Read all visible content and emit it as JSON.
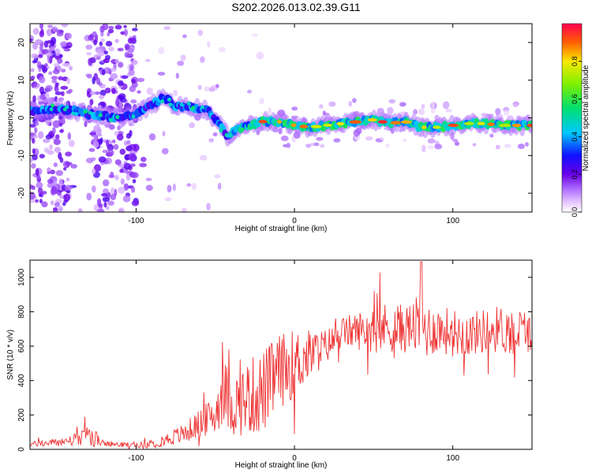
{
  "title": "S202.2026.013.02.39.G11",
  "chart_data": [
    {
      "type": "heatmap",
      "xlabel": "Height of straight line (km)",
      "ylabel": "Frequency (Hz)",
      "xlim": [
        -167,
        150
      ],
      "ylim": [
        -25,
        25
      ],
      "x_ticks": [
        -100,
        0,
        100
      ],
      "y_ticks": [
        -20,
        -10,
        0,
        10,
        20
      ],
      "ridge": {
        "x": [
          -160,
          -150,
          -140,
          -130,
          -120,
          -110,
          -100,
          -90,
          -82,
          -75,
          -65,
          -55,
          -48,
          -42,
          -38,
          -30,
          -20,
          -10,
          0,
          10,
          20,
          30,
          40,
          50,
          60,
          70,
          80,
          90,
          100,
          110,
          120,
          130,
          140,
          150
        ],
        "freq": [
          2,
          2.5,
          2,
          1,
          0.5,
          0,
          1,
          3.5,
          5.5,
          3,
          3,
          2,
          -1.5,
          -5,
          -3.5,
          -2,
          -1,
          -1,
          -2,
          -2.5,
          -2,
          -1.5,
          -1,
          -0.5,
          -1.5,
          -1,
          -2.5,
          -2.5,
          -2,
          -1.5,
          -1.5,
          -2,
          -2,
          -2
        ]
      },
      "colorbar": {
        "label": "Normalized spectral amplitude",
        "range": [
          0,
          1
        ],
        "ticks": [
          "0.0",
          "0.2",
          "0.4",
          "0.6",
          "0.8"
        ]
      }
    },
    {
      "type": "line",
      "xlabel": "Height of straight line (km)",
      "ylabel": "SNR (10 * v/v)",
      "xlim": [
        -167,
        150
      ],
      "ylim": [
        0,
        1100
      ],
      "x_ticks": [
        -100,
        0,
        100
      ],
      "y_ticks": [
        0,
        200,
        400,
        600,
        800,
        1000
      ],
      "series": [
        {
          "name": "SNR",
          "color": "#ee3333",
          "x": [
            -167,
            -150,
            -135,
            -130,
            -120,
            -100,
            -90,
            -80,
            -70,
            -60,
            -50,
            -45,
            -40,
            -30,
            -20,
            -10,
            0,
            10,
            20,
            30,
            40,
            50,
            60,
            70,
            75,
            80,
            85,
            90,
            100,
            110,
            120,
            130,
            140,
            150
          ],
          "base": [
            30,
            40,
            60,
            90,
            30,
            25,
            30,
            60,
            90,
            150,
            200,
            350,
            250,
            300,
            330,
            450,
            500,
            550,
            600,
            680,
            690,
            700,
            710,
            700,
            720,
            710,
            690,
            700,
            680,
            670,
            690,
            700,
            680,
            700
          ],
          "amplitude": [
            15,
            25,
            40,
            70,
            15,
            15,
            25,
            40,
            60,
            80,
            120,
            200,
            180,
            220,
            250,
            220,
            200,
            150,
            100,
            90,
            110,
            140,
            150,
            140,
            150,
            200,
            160,
            140,
            140,
            130,
            130,
            140,
            140,
            130
          ]
        }
      ]
    }
  ]
}
